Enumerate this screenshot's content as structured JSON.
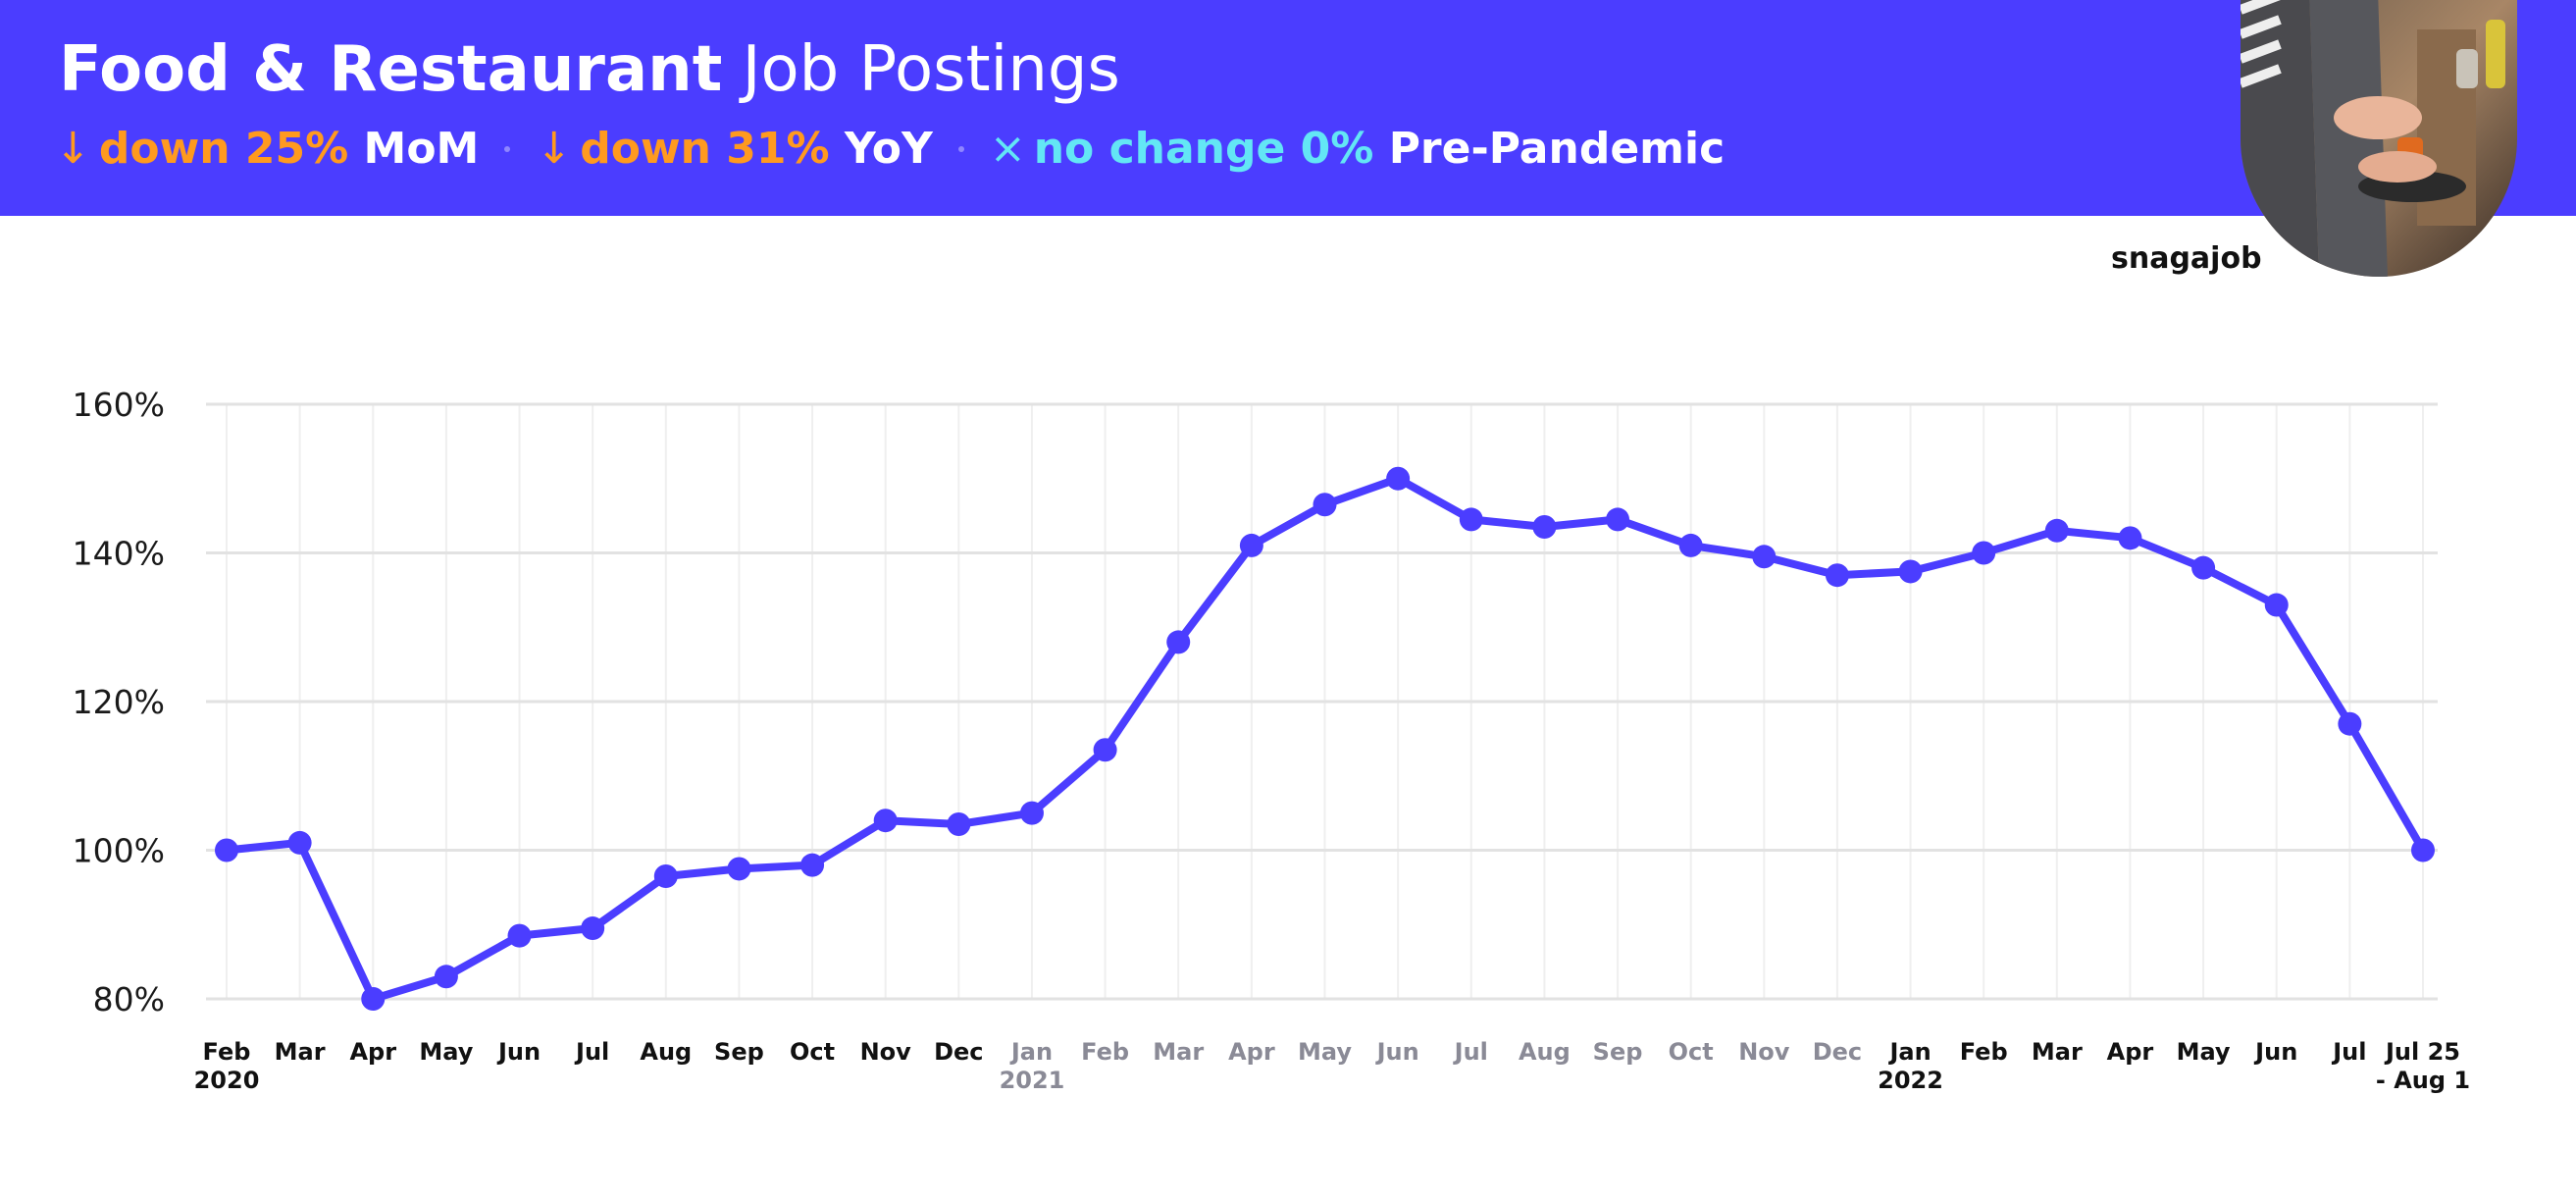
{
  "header": {
    "title_bold": "Food & Restaurant",
    "title_light": "Job Postings",
    "stats": [
      {
        "icon": "arrow-down-icon",
        "glyph": "↓",
        "change": "down 25%",
        "label": "MoM",
        "color": "#ff9a1f"
      },
      {
        "icon": "arrow-down-icon",
        "glyph": "↓",
        "change": "down 31%",
        "label": "YoY",
        "color": "#ff9a1f"
      },
      {
        "icon": "x-mark-icon",
        "glyph": "×",
        "change": "no change 0%",
        "label": "Pre-Pandemic",
        "color": "#63e6f5"
      }
    ],
    "background_color": "#4b3dff"
  },
  "brand": "snagajob",
  "chart_data": {
    "type": "line",
    "title": "",
    "xlabel": "",
    "ylabel": "",
    "ylim": [
      80,
      160
    ],
    "yticks": [
      "160%",
      "140%",
      "120%",
      "100%",
      "80%"
    ],
    "ytick_values": [
      160,
      140,
      120,
      100,
      80
    ],
    "grid": true,
    "categories": [
      {
        "label": "Feb",
        "sub": "2020",
        "muted": false
      },
      {
        "label": "Mar",
        "sub": "",
        "muted": false
      },
      {
        "label": "Apr",
        "sub": "",
        "muted": false
      },
      {
        "label": "May",
        "sub": "",
        "muted": false
      },
      {
        "label": "Jun",
        "sub": "",
        "muted": false
      },
      {
        "label": "Jul",
        "sub": "",
        "muted": false
      },
      {
        "label": "Aug",
        "sub": "",
        "muted": false
      },
      {
        "label": "Sep",
        "sub": "",
        "muted": false
      },
      {
        "label": "Oct",
        "sub": "",
        "muted": false
      },
      {
        "label": "Nov",
        "sub": "",
        "muted": false
      },
      {
        "label": "Dec",
        "sub": "",
        "muted": false
      },
      {
        "label": "Jan",
        "sub": "2021",
        "muted": true
      },
      {
        "label": "Feb",
        "sub": "",
        "muted": true
      },
      {
        "label": "Mar",
        "sub": "",
        "muted": true
      },
      {
        "label": "Apr",
        "sub": "",
        "muted": true
      },
      {
        "label": "May",
        "sub": "",
        "muted": true
      },
      {
        "label": "Jun",
        "sub": "",
        "muted": true
      },
      {
        "label": "Jul",
        "sub": "",
        "muted": true
      },
      {
        "label": "Aug",
        "sub": "",
        "muted": true
      },
      {
        "label": "Sep",
        "sub": "",
        "muted": true
      },
      {
        "label": "Oct",
        "sub": "",
        "muted": true
      },
      {
        "label": "Nov",
        "sub": "",
        "muted": true
      },
      {
        "label": "Dec",
        "sub": "",
        "muted": true
      },
      {
        "label": "Jan",
        "sub": "2022",
        "muted": false
      },
      {
        "label": "Feb",
        "sub": "",
        "muted": false
      },
      {
        "label": "Mar",
        "sub": "",
        "muted": false
      },
      {
        "label": "Apr",
        "sub": "",
        "muted": false
      },
      {
        "label": "May",
        "sub": "",
        "muted": false
      },
      {
        "label": "Jun",
        "sub": "",
        "muted": false
      },
      {
        "label": "Jul",
        "sub": "",
        "muted": false
      },
      {
        "label": "Jul 25",
        "sub": "- Aug 1",
        "muted": false
      }
    ],
    "series": [
      {
        "color": "#4b3dff",
        "values": [
          100,
          101,
          80,
          83,
          88.5,
          89.5,
          96.5,
          97.5,
          98,
          104,
          103.5,
          105,
          113.5,
          128,
          141,
          146.5,
          150,
          144.5,
          143.5,
          144.5,
          141,
          139.5,
          137,
          137.5,
          140,
          143,
          142,
          138,
          133,
          117,
          100
        ]
      }
    ]
  }
}
